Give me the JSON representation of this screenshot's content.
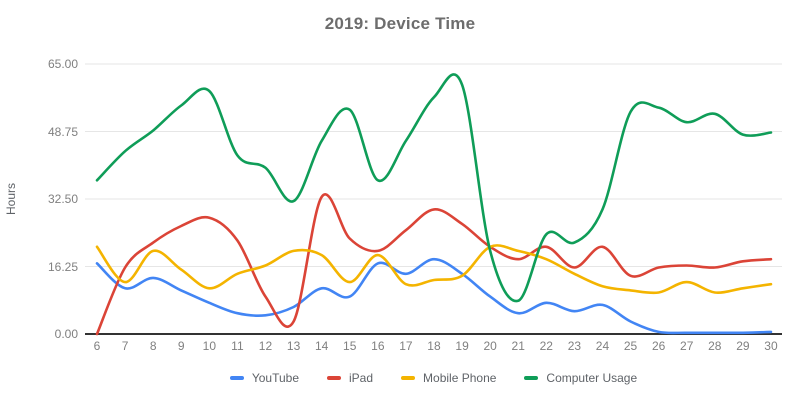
{
  "title": "2019: Device Time",
  "chart_data": {
    "type": "line",
    "title": "2019: Device Time",
    "xlabel": "",
    "ylabel": "Hours",
    "smooth": true,
    "grid": "horizontal",
    "legend_position": "bottom",
    "ylim": [
      0,
      65
    ],
    "y_ticks": [
      {
        "value": 0,
        "label": "0.00"
      },
      {
        "value": 16.25,
        "label": "16.25"
      },
      {
        "value": 32.5,
        "label": "32.50"
      },
      {
        "value": 48.75,
        "label": "48.75"
      },
      {
        "value": 65,
        "label": "65.00"
      }
    ],
    "x": [
      6,
      7,
      8,
      9,
      10,
      11,
      12,
      13,
      14,
      15,
      16,
      17,
      18,
      19,
      20,
      21,
      22,
      23,
      24,
      25,
      26,
      27,
      28,
      29,
      30
    ],
    "series": [
      {
        "name": "YouTube",
        "color": "#4285F4",
        "values": [
          17,
          11,
          13.5,
          10.5,
          7.5,
          5,
          4.5,
          6.5,
          11,
          9,
          17,
          14.5,
          18,
          14.5,
          9,
          5,
          7.5,
          5.5,
          7,
          3,
          0.5,
          0.3,
          0.3,
          0.3,
          0.5
        ]
      },
      {
        "name": "iPad",
        "color": "#DB4437",
        "values": [
          0,
          16,
          22,
          26,
          28,
          22.5,
          9,
          3,
          33,
          23,
          20,
          25,
          30,
          26.5,
          21,
          18,
          21,
          16,
          21,
          14,
          16,
          16.5,
          16,
          17.5,
          18
        ]
      },
      {
        "name": "Mobile Phone",
        "color": "#F4B400",
        "values": [
          21,
          12.5,
          20,
          15.5,
          11,
          14.5,
          16.5,
          20,
          19,
          12.5,
          19,
          12,
          13,
          14,
          21,
          20,
          18,
          14.5,
          11.5,
          10.5,
          10,
          12.5,
          10,
          11,
          12
        ]
      },
      {
        "name": "Computer Usage",
        "color": "#0F9D58",
        "values": [
          37,
          44,
          49,
          55,
          58.5,
          43,
          40,
          32,
          46.5,
          54,
          37,
          46.5,
          57,
          60,
          20,
          8,
          24,
          22,
          30,
          53.5,
          54.5,
          51,
          53,
          48,
          48.5
        ]
      }
    ]
  },
  "colors": {
    "background": "#ffffff",
    "title_text": "#6d6d6d",
    "tick_label": "#808080",
    "axis_title": "#5f6368",
    "legend_label": "#5f6368",
    "gridline": "#e6e6e6",
    "axis_line": "#333333"
  }
}
